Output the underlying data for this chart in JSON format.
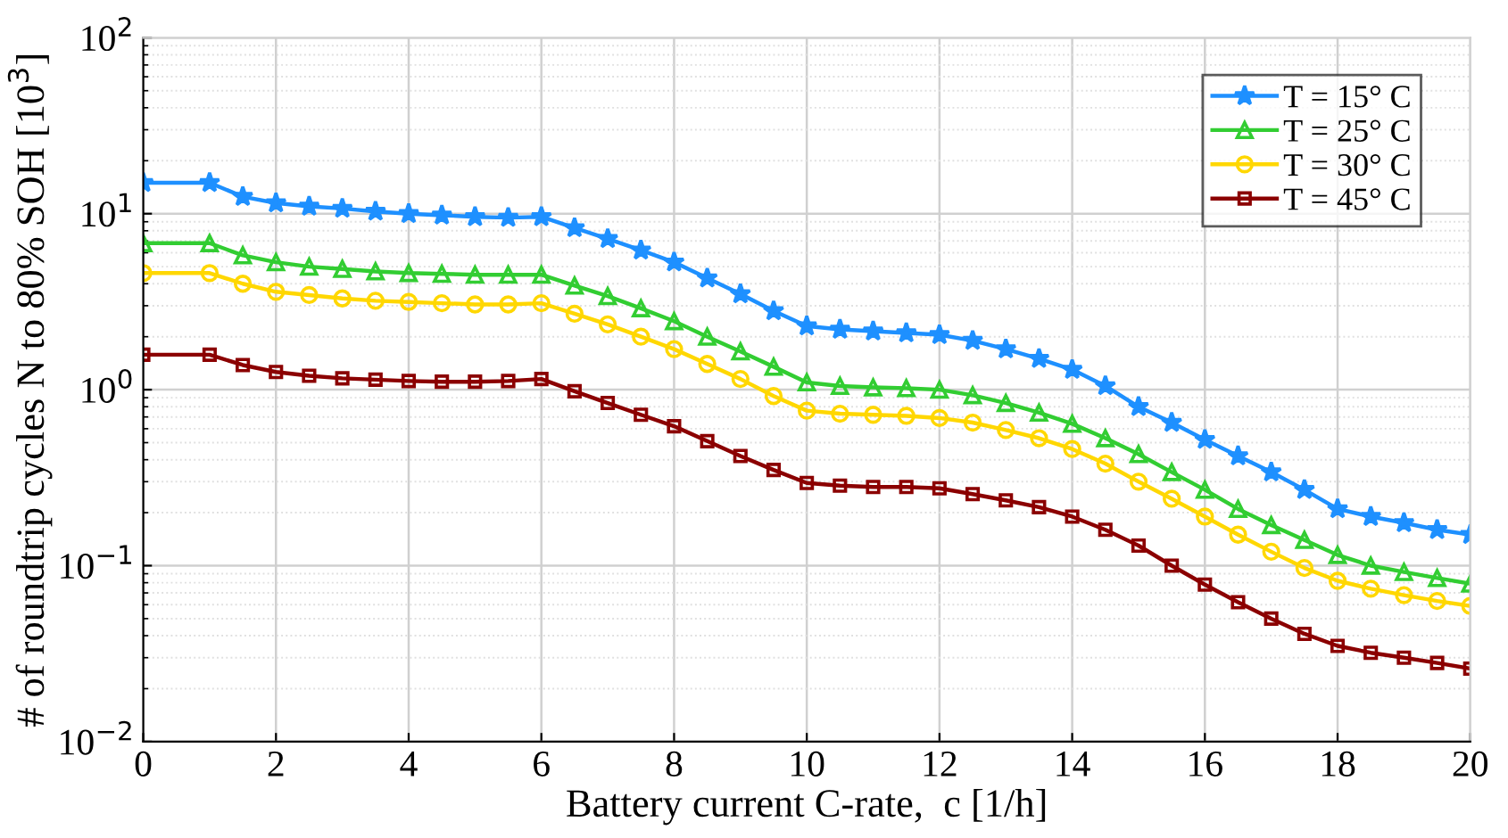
{
  "chart_data": {
    "type": "line",
    "xlabel": "Battery current C-rate,  c [1/h]",
    "ylabel": "# of roundtrip cycles N to 80% SOH [10$^{3}$]",
    "x": [
      0,
      1,
      1.5,
      2,
      2.5,
      3,
      3.5,
      4,
      4.5,
      5,
      5.5,
      6,
      6.5,
      7,
      7.5,
      8,
      8.5,
      9,
      9.5,
      10,
      10.5,
      11,
      11.5,
      12,
      12.5,
      13,
      13.5,
      14,
      14.5,
      15,
      15.5,
      16,
      16.5,
      17,
      17.5,
      18,
      18.5,
      19,
      19.5,
      20
    ],
    "series": [
      {
        "name": "T = 15° C",
        "color": "#1e90ff",
        "marker": "star",
        "values": [
          15,
          15,
          12.5,
          11.5,
          11,
          10.7,
          10.3,
          10,
          9.8,
          9.6,
          9.5,
          9.6,
          8.3,
          7.2,
          6.2,
          5.3,
          4.3,
          3.5,
          2.8,
          2.3,
          2.2,
          2.15,
          2.1,
          2.05,
          1.9,
          1.7,
          1.5,
          1.3,
          1.05,
          0.8,
          0.65,
          0.52,
          0.42,
          0.34,
          0.27,
          0.21,
          0.19,
          0.175,
          0.16,
          0.15
        ]
      },
      {
        "name": "T = 25° C",
        "color": "#32cd32",
        "marker": "triangle",
        "values": [
          6.8,
          6.8,
          5.8,
          5.3,
          5.0,
          4.85,
          4.7,
          4.6,
          4.55,
          4.5,
          4.5,
          4.5,
          3.9,
          3.4,
          2.9,
          2.45,
          2.0,
          1.65,
          1.35,
          1.1,
          1.05,
          1.03,
          1.02,
          1.0,
          0.93,
          0.84,
          0.74,
          0.64,
          0.53,
          0.43,
          0.34,
          0.27,
          0.21,
          0.17,
          0.14,
          0.115,
          0.1,
          0.092,
          0.085,
          0.079
        ]
      },
      {
        "name": "T = 30° C",
        "color": "#ffd700",
        "marker": "circle",
        "values": [
          4.6,
          4.6,
          4.0,
          3.6,
          3.45,
          3.3,
          3.2,
          3.15,
          3.1,
          3.05,
          3.05,
          3.1,
          2.7,
          2.35,
          2.0,
          1.7,
          1.4,
          1.15,
          0.92,
          0.76,
          0.73,
          0.72,
          0.71,
          0.69,
          0.65,
          0.59,
          0.53,
          0.46,
          0.38,
          0.3,
          0.24,
          0.19,
          0.15,
          0.12,
          0.097,
          0.082,
          0.074,
          0.068,
          0.063,
          0.059
        ]
      },
      {
        "name": "T = 45° C",
        "color": "#8b0000",
        "marker": "square",
        "values": [
          1.58,
          1.58,
          1.38,
          1.26,
          1.2,
          1.16,
          1.14,
          1.12,
          1.11,
          1.11,
          1.12,
          1.15,
          0.98,
          0.84,
          0.72,
          0.62,
          0.51,
          0.42,
          0.35,
          0.295,
          0.285,
          0.28,
          0.28,
          0.275,
          0.255,
          0.235,
          0.215,
          0.19,
          0.16,
          0.13,
          0.1,
          0.078,
          0.062,
          0.05,
          0.041,
          0.035,
          0.032,
          0.03,
          0.028,
          0.026
        ]
      }
    ],
    "log": "y",
    "xlim": [
      0,
      20
    ],
    "xticks": [
      0,
      2,
      4,
      6,
      8,
      10,
      12,
      14,
      16,
      18,
      20
    ],
    "ylim": [
      0.01,
      100
    ],
    "yticks": [
      {
        "value": 0.01,
        "label": "10$^{−2}$"
      },
      {
        "value": 0.1,
        "label": "10$^{−1}$"
      },
      {
        "value": 1,
        "label": "10$^{0}$"
      },
      {
        "value": 10,
        "label": "10$^{1}$"
      },
      {
        "value": 100,
        "label": "10$^{2}$"
      }
    ],
    "grid": true,
    "legend": "top right"
  }
}
